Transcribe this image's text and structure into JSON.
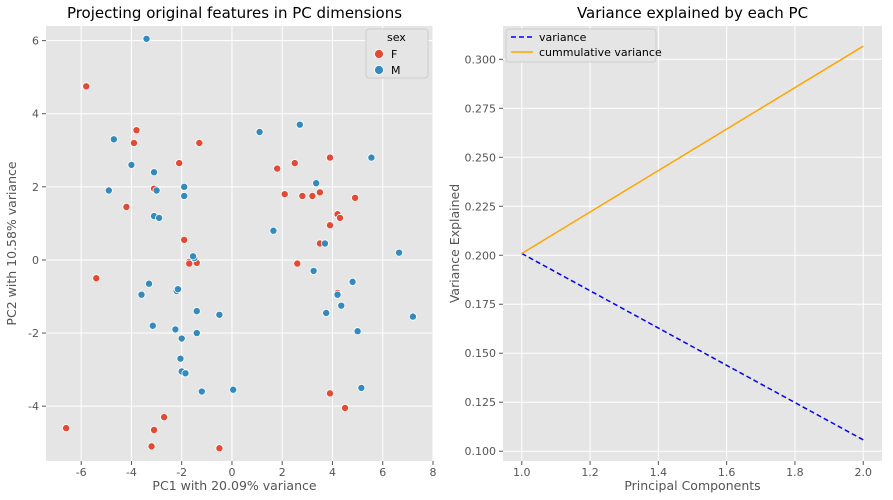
{
  "chart_data": [
    {
      "type": "scatter",
      "title": "Projecting original features in PC dimensions",
      "xlabel": "PC1 with 20.09% variance",
      "ylabel": "PC2 with 10.58% variance",
      "xlim": [
        -7.4,
        8.0
      ],
      "ylim": [
        -5.5,
        6.4
      ],
      "xticks": [
        -6,
        -4,
        -2,
        0,
        2,
        4,
        6,
        8
      ],
      "yticks": [
        -4,
        -2,
        0,
        2,
        4,
        6
      ],
      "grid": true,
      "legend": {
        "title": "sex",
        "placement": "top-right"
      },
      "series": [
        {
          "name": "F",
          "color": "#e24a33",
          "points": [
            [
              -6.6,
              -4.6
            ],
            [
              -5.8,
              4.75
            ],
            [
              -5.4,
              -0.5
            ],
            [
              -3.8,
              3.55
            ],
            [
              -3.9,
              3.2
            ],
            [
              -4.2,
              1.45
            ],
            [
              -3.1,
              1.95
            ],
            [
              -2.1,
              2.65
            ],
            [
              -1.3,
              3.2
            ],
            [
              -1.9,
              0.55
            ],
            [
              -1.7,
              -0.05
            ],
            [
              -1.7,
              -0.1
            ],
            [
              -1.4,
              -0.08
            ],
            [
              -2.7,
              -4.3
            ],
            [
              -3.1,
              -4.65
            ],
            [
              -3.2,
              -5.1
            ],
            [
              -0.5,
              -5.15
            ],
            [
              1.8,
              2.5
            ],
            [
              2.1,
              1.8
            ],
            [
              2.5,
              2.65
            ],
            [
              2.8,
              1.75
            ],
            [
              3.2,
              1.75
            ],
            [
              3.5,
              1.85
            ],
            [
              2.6,
              -0.1
            ],
            [
              3.5,
              0.45
            ],
            [
              3.9,
              2.8
            ],
            [
              3.9,
              0.95
            ],
            [
              4.2,
              1.25
            ],
            [
              4.3,
              1.15
            ],
            [
              4.9,
              1.7
            ],
            [
              4.2,
              -0.9
            ],
            [
              3.9,
              -3.65
            ],
            [
              4.5,
              -4.05
            ]
          ]
        },
        {
          "name": "M",
          "color": "#348abd",
          "points": [
            [
              -3.4,
              6.05
            ],
            [
              -4.7,
              3.3
            ],
            [
              -4.0,
              2.6
            ],
            [
              -4.9,
              1.9
            ],
            [
              -3.1,
              2.4
            ],
            [
              -3.0,
              1.9
            ],
            [
              -1.9,
              2.0
            ],
            [
              -1.9,
              1.75
            ],
            [
              -3.1,
              1.2
            ],
            [
              -2.9,
              1.15
            ],
            [
              -1.5,
              0.05
            ],
            [
              -1.55,
              0.1
            ],
            [
              -3.3,
              -0.65
            ],
            [
              -3.6,
              -0.95
            ],
            [
              -2.2,
              -0.85
            ],
            [
              -2.15,
              -0.8
            ],
            [
              -3.15,
              -1.8
            ],
            [
              -1.4,
              -1.4
            ],
            [
              -0.5,
              -1.5
            ],
            [
              -2.25,
              -1.9
            ],
            [
              -1.4,
              -2.0
            ],
            [
              -2.0,
              -2.15
            ],
            [
              -2.05,
              -2.7
            ],
            [
              -2.0,
              -3.05
            ],
            [
              -1.85,
              -3.1
            ],
            [
              -1.2,
              -3.6
            ],
            [
              0.05,
              -3.55
            ],
            [
              1.1,
              3.5
            ],
            [
              2.7,
              3.7
            ],
            [
              3.35,
              2.1
            ],
            [
              1.65,
              0.8
            ],
            [
              3.25,
              -0.3
            ],
            [
              3.7,
              0.45
            ],
            [
              5.55,
              2.8
            ],
            [
              6.65,
              0.2
            ],
            [
              4.8,
              -0.6
            ],
            [
              4.2,
              -0.95
            ],
            [
              4.35,
              -1.25
            ],
            [
              3.75,
              -1.45
            ],
            [
              5.0,
              -1.95
            ],
            [
              7.2,
              -1.55
            ],
            [
              5.15,
              -3.5
            ]
          ]
        }
      ]
    },
    {
      "type": "line",
      "title": "Variance explained by each PC",
      "xlabel": "Principal Components",
      "ylabel": "Variance Explained",
      "xlim": [
        0.945,
        2.055
      ],
      "ylim": [
        0.095,
        0.317
      ],
      "xticks": [
        1.0,
        1.2,
        1.4,
        1.6,
        1.8,
        2.0
      ],
      "yticks": [
        0.1,
        0.125,
        0.15,
        0.175,
        0.2,
        0.225,
        0.25,
        0.275,
        0.3
      ],
      "xtick_labels": [
        "1.0",
        "1.2",
        "1.4",
        "1.6",
        "1.8",
        "2.0"
      ],
      "ytick_labels": [
        "0.100",
        "0.125",
        "0.150",
        "0.175",
        "0.200",
        "0.225",
        "0.250",
        "0.275",
        "0.300"
      ],
      "grid": true,
      "legend": {
        "placement": "top-left"
      },
      "x": [
        1,
        2
      ],
      "series": [
        {
          "name": "variance",
          "values": [
            0.2009,
            0.1058
          ],
          "color": "#0000ff",
          "style": "dashed"
        },
        {
          "name": "cummulative variance",
          "values": [
            0.2009,
            0.3067
          ],
          "color": "#ffa500",
          "style": "solid"
        }
      ]
    }
  ]
}
